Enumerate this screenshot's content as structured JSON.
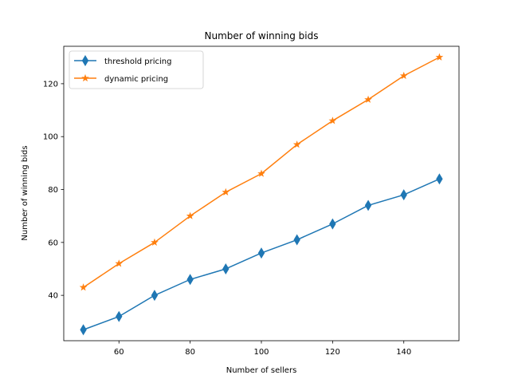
{
  "chart_data": {
    "type": "line",
    "title": "Number of winning bids",
    "xlabel": "Number of sellers",
    "ylabel": "Number of winning bids",
    "x": [
      50,
      60,
      70,
      80,
      90,
      100,
      110,
      120,
      130,
      140,
      150
    ],
    "xlim": [
      44.5,
      155.5
    ],
    "ylim": [
      22.85,
      134.15
    ],
    "xticks": [
      60,
      80,
      100,
      120,
      140
    ],
    "yticks": [
      40,
      60,
      80,
      100,
      120
    ],
    "grid": false,
    "legend_position": "upper left",
    "series": [
      {
        "name": "threshold pricing",
        "color": "#1f77b4",
        "marker": "thin-diamond",
        "values": [
          27,
          32,
          40,
          46,
          50,
          56,
          61,
          67,
          74,
          78,
          84
        ]
      },
      {
        "name": "dynamic pricing",
        "color": "#ff7f0e",
        "marker": "star",
        "values": [
          43,
          52,
          60,
          70,
          79,
          86,
          97,
          106,
          114,
          123,
          130
        ]
      }
    ]
  }
}
